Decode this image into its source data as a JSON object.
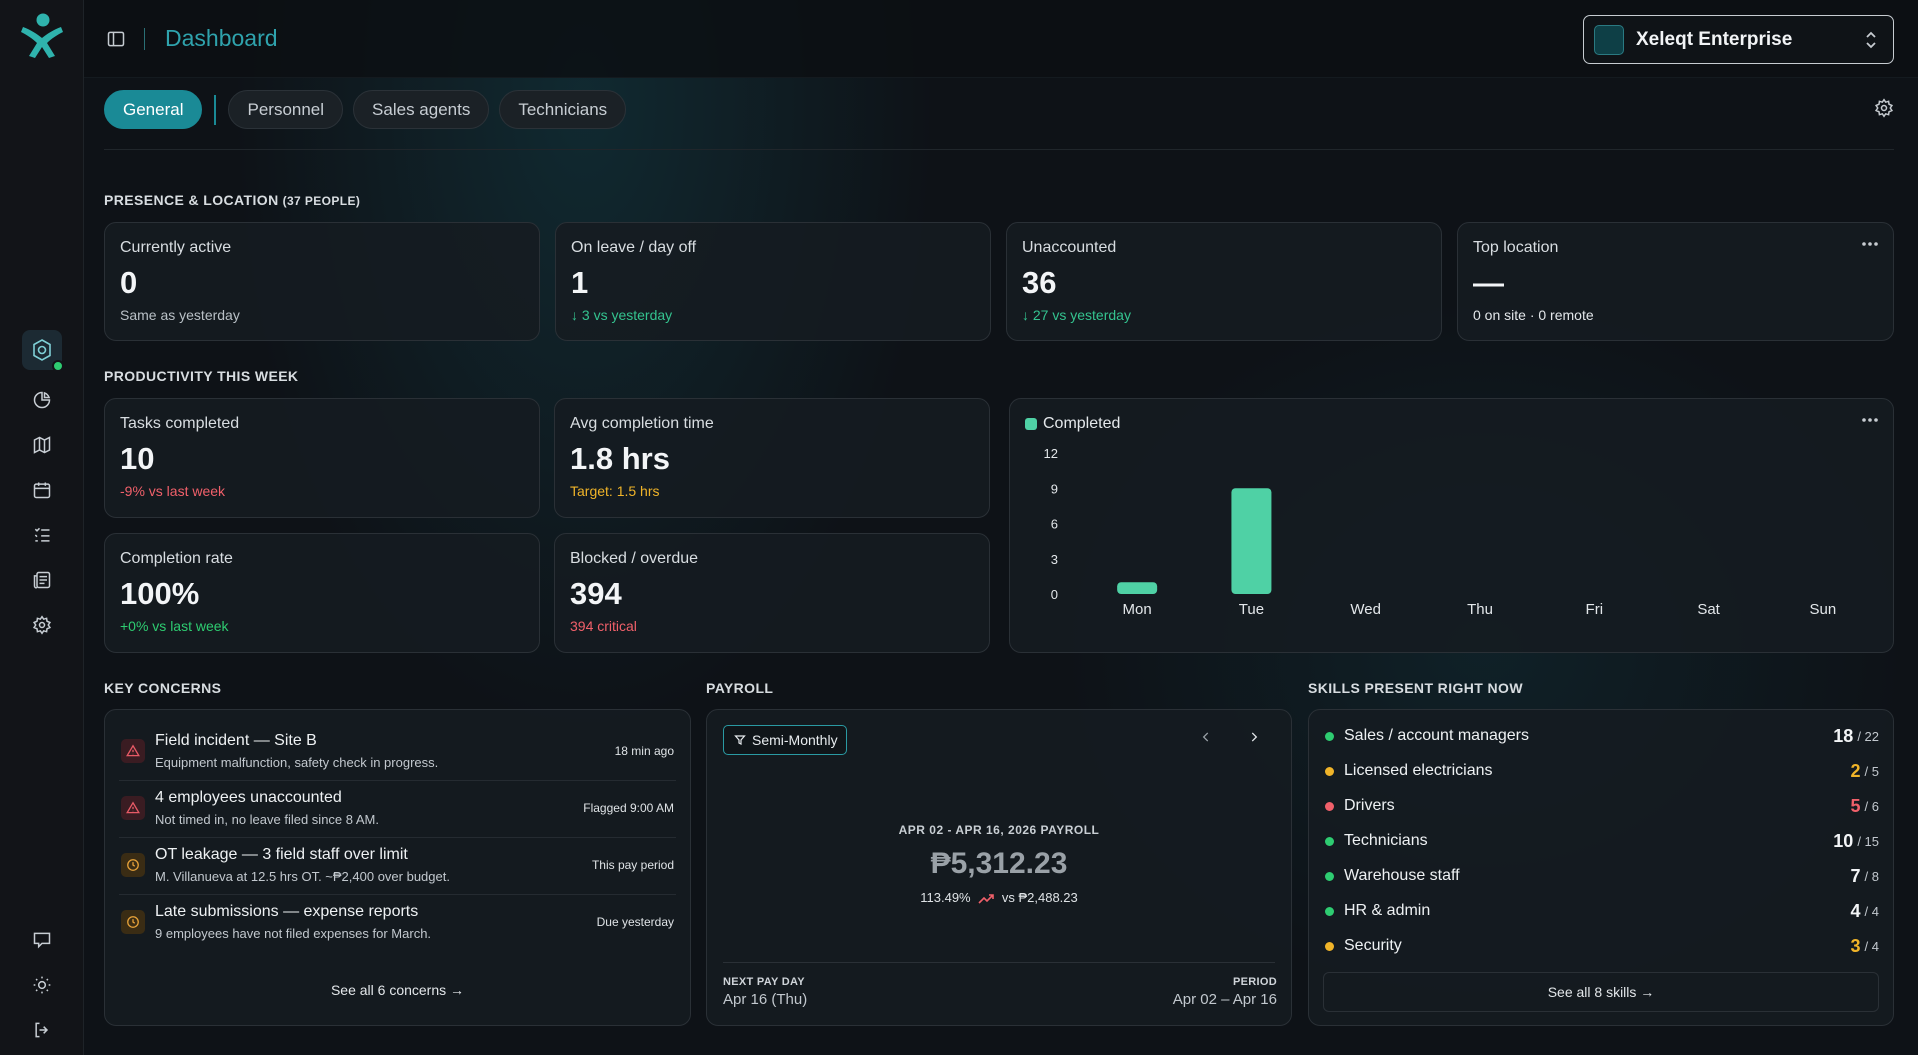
{
  "header": {
    "title": "Dashboard",
    "org_name": "Xeleqt Enterprise"
  },
  "tabs": [
    "General",
    "Personnel",
    "Sales agents",
    "Technicians"
  ],
  "presence": {
    "title": "Presence & Location",
    "subtitle": "(37 people)",
    "cards": [
      {
        "label": "Currently active",
        "value": "0",
        "note": "Same as yesterday"
      },
      {
        "label": "On leave / day off",
        "value": "1",
        "note": "↓ 3 vs yesterday"
      },
      {
        "label": "Unaccounted",
        "value": "36",
        "note": "↓ 27 vs yesterday"
      },
      {
        "label": "Top location",
        "value": "—",
        "note": "0 on site · 0 remote"
      }
    ]
  },
  "productivity": {
    "title": "Productivity this week",
    "cards": [
      {
        "label": "Tasks completed",
        "value": "10",
        "note": "-9% vs last week"
      },
      {
        "label": "Avg completion time",
        "value": "1.8 hrs",
        "note": "Target: 1.5 hrs"
      },
      {
        "label": "Completion rate",
        "value": "100%",
        "note": "+0% vs last week"
      },
      {
        "label": "Blocked / overdue",
        "value": "394",
        "note": "394 critical"
      }
    ]
  },
  "chart_data": {
    "type": "bar",
    "categories": [
      "Mon",
      "Tue",
      "Wed",
      "Thu",
      "Fri",
      "Sat",
      "Sun"
    ],
    "series": [
      {
        "name": "Completed",
        "values": [
          1,
          9,
          0,
          0,
          0,
          0,
          0
        ]
      }
    ],
    "yticks": [
      "0",
      "3",
      "6",
      "9",
      "12"
    ],
    "ylim": [
      0,
      12
    ],
    "color": "#4fd1a5"
  },
  "concerns": {
    "title": "Key concerns",
    "items": [
      {
        "title": "Field incident — Site B",
        "desc": "Equipment malfunction, safety check in progress.",
        "time": "18 min ago",
        "icon": "alert-triangle-icon"
      },
      {
        "title": "4 employees unaccounted",
        "desc": "Not timed in, no leave filed since 8 AM.",
        "time": "Flagged 9:00 AM",
        "icon": "alert-triangle-icon"
      },
      {
        "title": "OT leakage — 3 field staff over limit",
        "desc": "M. Villanueva at 12.5 hrs OT. ~₱2,400 over budget.",
        "time": "This pay period",
        "icon": "clock-icon"
      },
      {
        "title": "Late submissions — expense reports",
        "desc": "9 employees have not filed expenses for March.",
        "time": "Due yesterday",
        "icon": "clock-icon"
      }
    ],
    "see_all": "See all 6 concerns →"
  },
  "payroll": {
    "title": "Payroll",
    "filter": "Semi-Monthly",
    "period_title": "APR 02 - APR 16, 2026 PAYROLL",
    "amount": "₱5,312.23",
    "change_pct": "113.49%",
    "change_vs": "vs ₱2,488.23",
    "next_pay_label": "NEXT PAY DAY",
    "next_pay_value": "Apr 16 (Thu)",
    "period_label": "PERIOD",
    "period_value": "Apr 02 – Apr 16"
  },
  "skills": {
    "title": "Skills present right now",
    "items": [
      {
        "name": "Sales / account managers",
        "count": "18",
        "total": "/ 22",
        "color": "#2ecc71"
      },
      {
        "name": "Licensed electricians",
        "count": "2",
        "total": "/ 5",
        "color": "#f0b429"
      },
      {
        "name": "Drivers",
        "count": "5",
        "total": "/ 6",
        "color": "#f0606a"
      },
      {
        "name": "Technicians",
        "count": "10",
        "total": "/ 15",
        "color": "#2ecc71"
      },
      {
        "name": "Warehouse staff",
        "count": "7",
        "total": "/ 8",
        "color": "#2ecc71"
      },
      {
        "name": "HR & admin",
        "count": "4",
        "total": "/ 4",
        "color": "#2ecc71"
      },
      {
        "name": "Security",
        "count": "3",
        "total": "/ 4",
        "color": "#f0b429"
      }
    ],
    "see_all": "See all 8 skills →"
  }
}
